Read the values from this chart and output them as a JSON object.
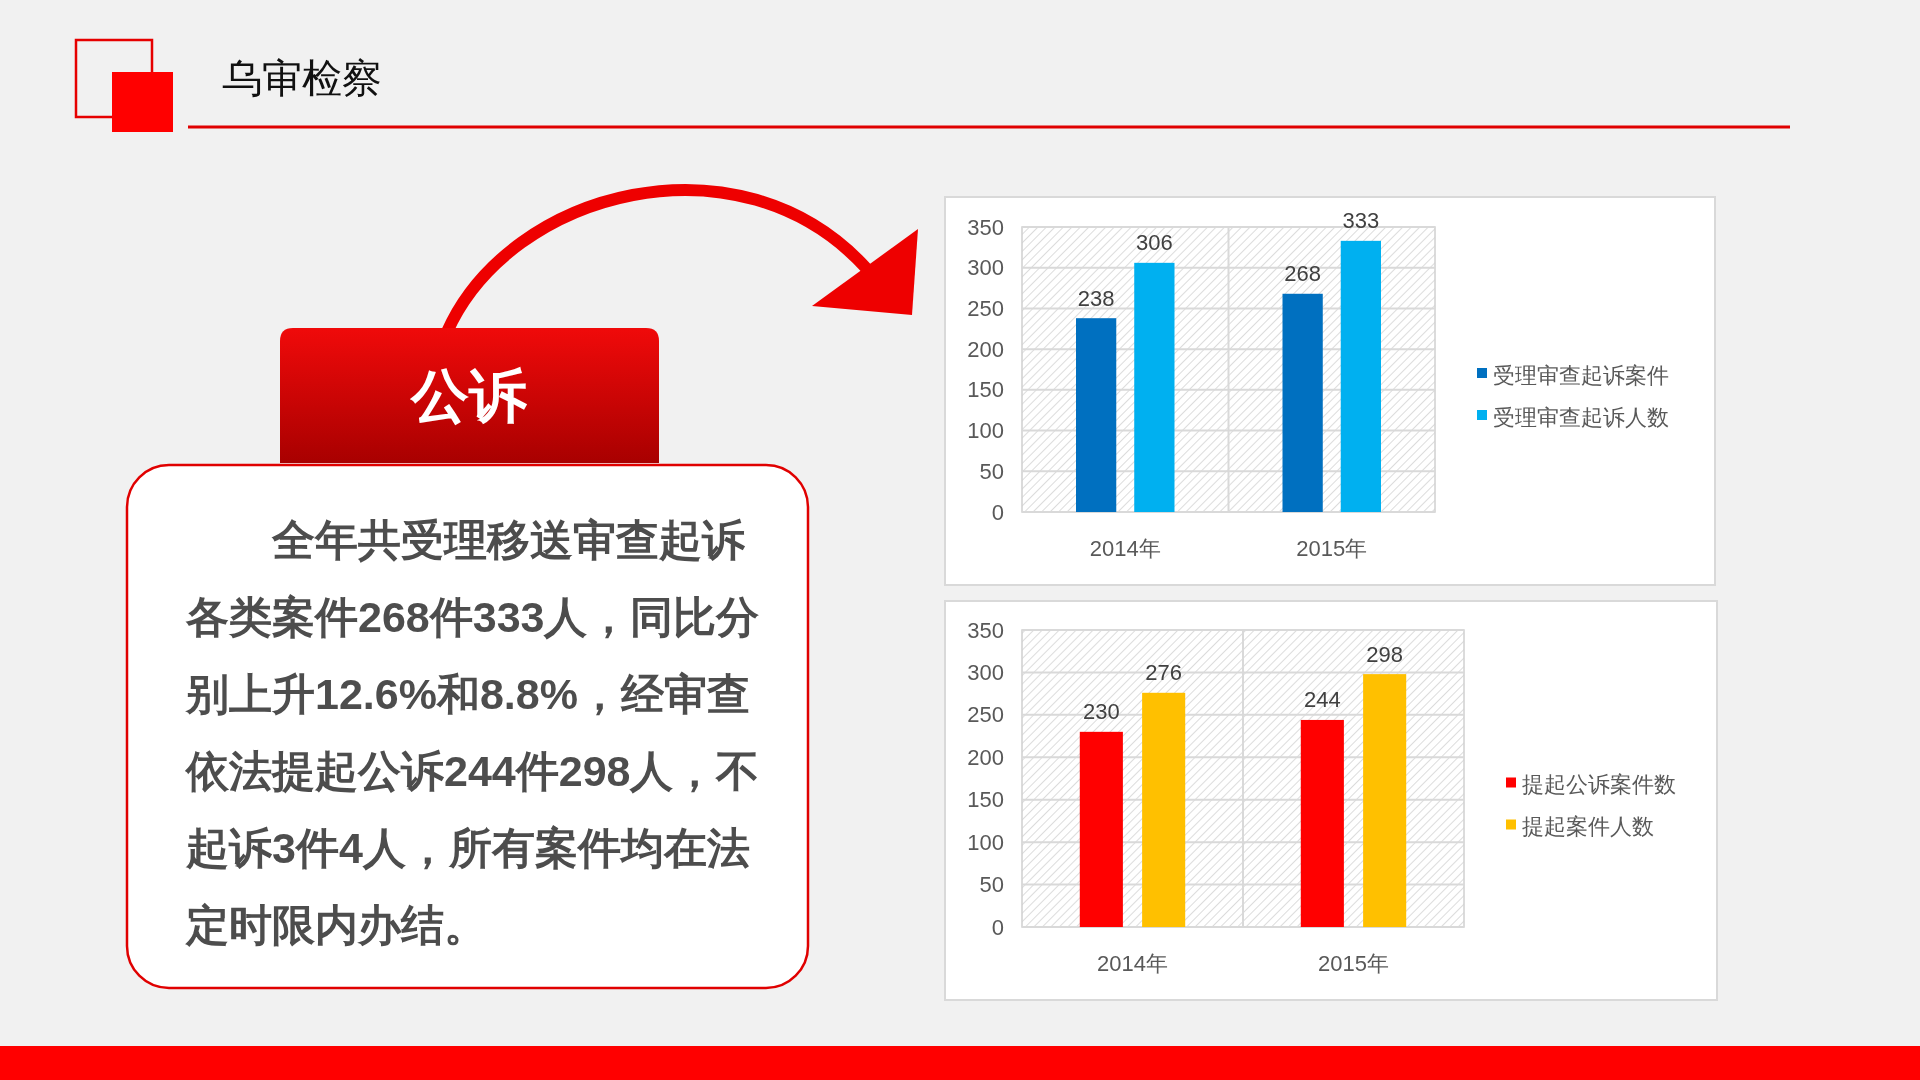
{
  "chart_data": [
    {
      "type": "other",
      "title": "乌审检察",
      "subtitle": "公诉",
      "annotations": [
        "全年共受理移送审查起诉各类案件268件333人，同比分别上升12.6%和8.8%，经审查依法提起公诉244件298人，不起诉3件4人，所有案件均在法定时限内办结。"
      ]
    },
    {
      "type": "bar",
      "categories": [
        "2014年",
        "2015年"
      ],
      "series": [
        {
          "name": "受理审查起诉案件",
          "color": "#0070c0",
          "values": [
            238,
            268
          ]
        },
        {
          "name": "受理审查起诉人数",
          "color": "#00b0f0",
          "values": [
            306,
            333
          ]
        }
      ],
      "ylim": [
        0,
        350
      ],
      "yticks": [
        0,
        50,
        100,
        150,
        200,
        250,
        300,
        350
      ],
      "grid": true,
      "legend": "right",
      "data_labels": true
    },
    {
      "type": "bar",
      "categories": [
        "2014年",
        "2015年"
      ],
      "series": [
        {
          "name": "提起公诉案件数",
          "color": "#ff0000",
          "values": [
            230,
            244
          ]
        },
        {
          "name": "提起案件人数",
          "color": "#ffc000",
          "values": [
            276,
            298
          ]
        }
      ],
      "ylim": [
        0,
        350
      ],
      "yticks": [
        0,
        50,
        100,
        150,
        200,
        250,
        300,
        350
      ],
      "grid": true,
      "legend": "right",
      "data_labels": true
    }
  ]
}
